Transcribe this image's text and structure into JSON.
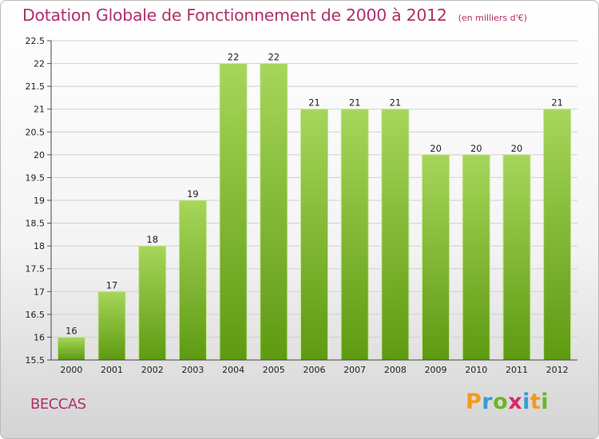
{
  "title": "Dotation Globale de Fonctionnement de 2000 à 2012",
  "subtitle": "(en milliers d'€)",
  "commune": "BECCAS",
  "logo": {
    "letters": [
      "P",
      "r",
      "o",
      "x",
      "i",
      "t",
      "i"
    ],
    "colors": [
      "#f39a1e",
      "#3a9ad9",
      "#6cb62a",
      "#d8286b",
      "#3a9ad9",
      "#f39a1e",
      "#6cb62a"
    ]
  },
  "colors": {
    "bar_top": "#a6d65a",
    "bar_bottom": "#5e9a12",
    "title": "#b0306a"
  },
  "chart_data": {
    "type": "bar",
    "title": "Dotation Globale de Fonctionnement de 2000 à 2012",
    "subtitle": "(en milliers d'€)",
    "categories": [
      "2000",
      "2001",
      "2002",
      "2003",
      "2004",
      "2005",
      "2006",
      "2007",
      "2008",
      "2009",
      "2010",
      "2011",
      "2012"
    ],
    "values": [
      16,
      17,
      18,
      19,
      22,
      22,
      21,
      21,
      21,
      20,
      20,
      20,
      21
    ],
    "data_labels": [
      "16",
      "17",
      "18",
      "19",
      "22",
      "22",
      "21",
      "21",
      "21",
      "20",
      "20",
      "20",
      "21"
    ],
    "ylim": [
      15.5,
      22.5
    ],
    "yticks": [
      15.5,
      16,
      16.5,
      17,
      17.5,
      18,
      18.5,
      19,
      19.5,
      20,
      20.5,
      21,
      21.5,
      22,
      22.5
    ],
    "ytick_labels": [
      "15.5",
      "16",
      "16.5",
      "17",
      "17.5",
      "18",
      "18.5",
      "19",
      "19.5",
      "20",
      "20.5",
      "21",
      "21.5",
      "22",
      "22.5"
    ],
    "grid": "horizontal",
    "legend": "none"
  }
}
